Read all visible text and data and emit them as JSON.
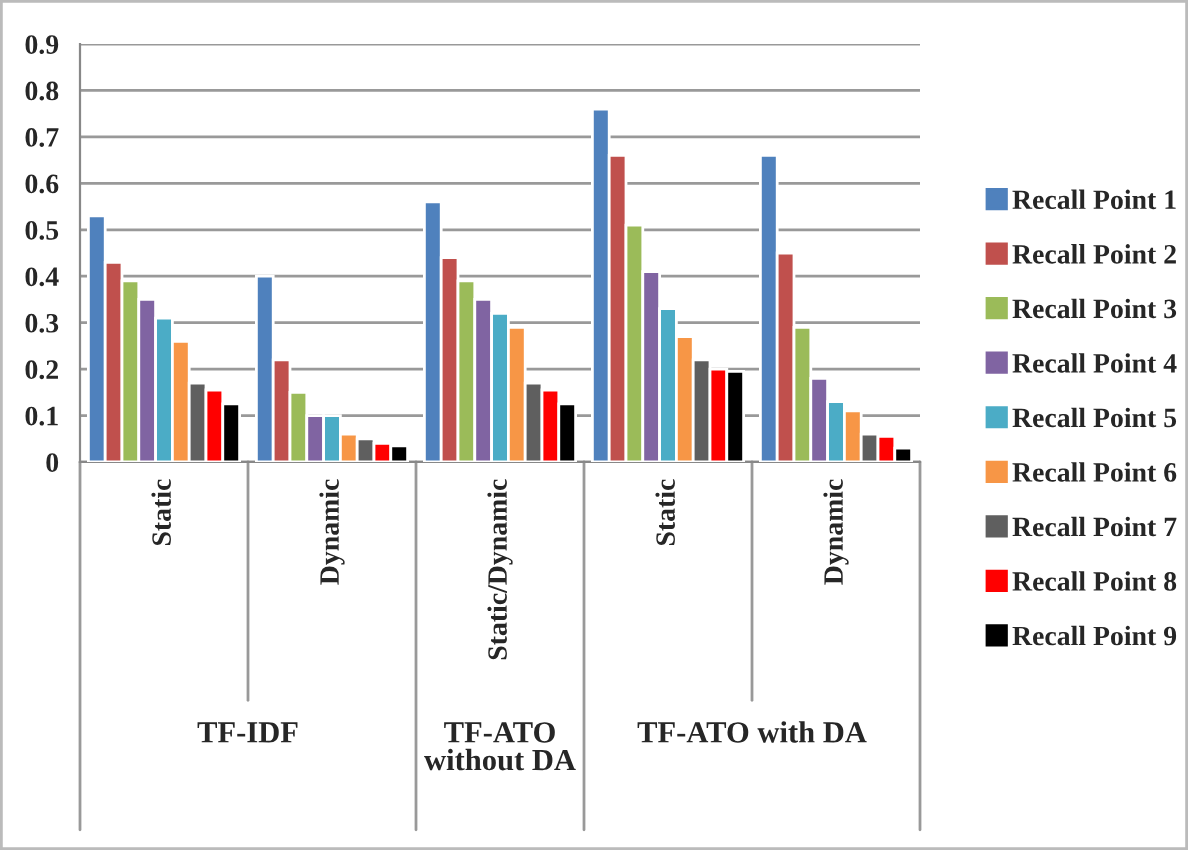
{
  "chart_data": {
    "type": "bar",
    "categories": [
      "Static",
      "Dynamic",
      "Static/Dynamic",
      "Static",
      "Dynamic"
    ],
    "series": [
      {
        "name": "Recall Point 1",
        "color": "#4f81bd",
        "values": [
          0.53,
          0.4,
          0.56,
          0.76,
          0.66
        ]
      },
      {
        "name": "Recall Point 2",
        "color": "#c0504d",
        "values": [
          0.43,
          0.22,
          0.44,
          0.66,
          0.45
        ]
      },
      {
        "name": "Recall Point 3",
        "color": "#9bbb59",
        "values": [
          0.39,
          0.15,
          0.39,
          0.51,
          0.29
        ]
      },
      {
        "name": "Recall Point 4",
        "color": "#8064a2",
        "values": [
          0.35,
          0.1,
          0.35,
          0.41,
          0.18
        ]
      },
      {
        "name": "Recall Point 5",
        "color": "#4bacc6",
        "values": [
          0.31,
          0.1,
          0.32,
          0.33,
          0.13
        ]
      },
      {
        "name": "Recall Point 6",
        "color": "#f79646",
        "values": [
          0.26,
          0.06,
          0.29,
          0.27,
          0.11
        ]
      },
      {
        "name": "Recall Point 7",
        "color": "#5f5f5f",
        "values": [
          0.17,
          0.05,
          0.17,
          0.22,
          0.06
        ]
      },
      {
        "name": "Recall Point 8",
        "color": "#ff0000",
        "values": [
          0.155,
          0.04,
          0.155,
          0.2,
          0.055
        ]
      },
      {
        "name": "Recall Point 9",
        "color": "#000000",
        "values": [
          0.125,
          0.035,
          0.125,
          0.195,
          0.03
        ]
      }
    ],
    "annotations": [
      "TF-IDF",
      "TF-ATO without DA",
      "TF-ATO with DA"
    ],
    "ylim": [
      0,
      0.9
    ],
    "yticks": [
      0,
      0.1,
      0.2,
      0.3,
      0.4,
      0.5,
      0.6,
      0.7,
      0.8,
      0.9
    ],
    "grid": "y",
    "legend": "right"
  }
}
